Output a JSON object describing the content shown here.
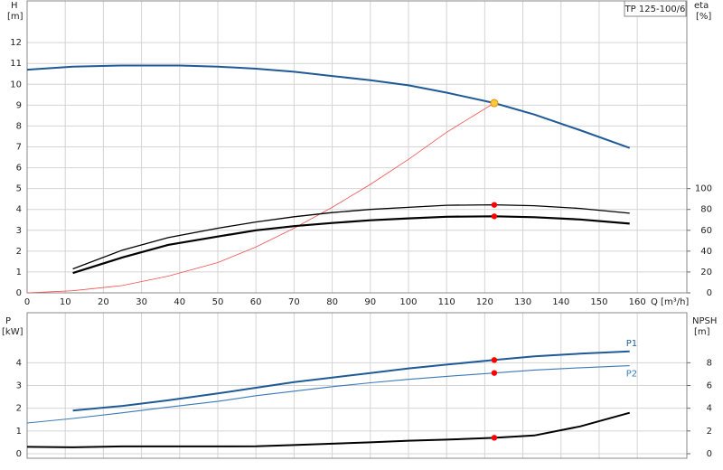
{
  "chart_data": [
    {
      "type": "line",
      "title": "TP 125-100/6",
      "ylabel": "H",
      "yunit": "[m]",
      "y2label": "eta",
      "y2unit": "[%]",
      "xlabel": "Q [m³/h]",
      "xlim": [
        0,
        173
      ],
      "xticks": [
        0,
        10,
        20,
        30,
        40,
        50,
        60,
        70,
        80,
        90,
        100,
        110,
        120,
        130,
        140,
        150,
        160
      ],
      "ylim": [
        0,
        14
      ],
      "yticks": [
        0,
        1,
        2,
        3,
        4,
        5,
        6,
        7,
        8,
        9,
        10,
        11,
        12
      ],
      "y2lim": [
        0,
        280
      ],
      "y2ticks": [
        0,
        20,
        40,
        60,
        80,
        100
      ],
      "grid": true,
      "series": [
        {
          "type": "line",
          "color": "#1f5a96",
          "x": [
            0,
            12,
            25,
            40,
            50,
            60,
            70,
            80,
            90,
            100,
            110,
            122.5,
            133,
            145,
            158
          ],
          "values": [
            10.7,
            10.85,
            10.9,
            10.9,
            10.85,
            10.75,
            10.6,
            10.4,
            10.2,
            9.95,
            9.6,
            9.1,
            8.55,
            7.8,
            6.95
          ]
        },
        {
          "type": "line",
          "color": "#f05050",
          "x": [
            0,
            12,
            25,
            37,
            50,
            60,
            70,
            80,
            90,
            100,
            110,
            122.5
          ],
          "values": [
            0,
            0.1,
            0.35,
            0.8,
            1.45,
            2.2,
            3.1,
            4.1,
            5.2,
            6.4,
            7.7,
            9.1
          ]
        },
        {
          "type": "line",
          "color": "#000000",
          "axis": "y2",
          "x": [
            12,
            25,
            37,
            50,
            60,
            70,
            80,
            90,
            100,
            110,
            122.5,
            133,
            145,
            158
          ],
          "values": [
            23,
            41,
            53,
            62,
            68,
            73,
            77,
            80,
            82,
            84,
            84.4,
            83.6,
            81,
            76.4
          ]
        },
        {
          "type": "line",
          "color": "#000000",
          "axis": "y2",
          "x": [
            12,
            25,
            37,
            50,
            60,
            70,
            80,
            90,
            100,
            110,
            122.5,
            133,
            145,
            158
          ],
          "values": [
            19,
            34,
            46,
            54,
            60,
            64,
            67,
            69.6,
            71.4,
            73,
            73.4,
            72.6,
            70.4,
            66.4
          ]
        },
        {
          "type": "scatter",
          "color": "#ffc640",
          "x": [
            122.5
          ],
          "values": [
            9.1
          ]
        },
        {
          "type": "scatter",
          "color": "#ff0000",
          "axis": "y2",
          "x": [
            122.5,
            122.5
          ],
          "values": [
            84.4,
            73.4
          ]
        }
      ]
    },
    {
      "type": "line",
      "ylabel": "P",
      "yunit": "[kW]",
      "y2label": "NPSH",
      "y2unit": "[m]",
      "xlim": [
        0,
        173
      ],
      "ylim": [
        -0.2,
        6.2
      ],
      "yticks": [
        0,
        1,
        2,
        3,
        4
      ],
      "y2lim": [
        -0.4,
        12.4
      ],
      "y2ticks": [
        0,
        2,
        4,
        6,
        8
      ],
      "grid": true,
      "series": [
        {
          "type": "line",
          "name": "P1",
          "color": "#1f5a96",
          "x": [
            12,
            25,
            37,
            50,
            60,
            70,
            80,
            90,
            100,
            110,
            122.5,
            133,
            145,
            158
          ],
          "values": [
            1.9,
            2.1,
            2.35,
            2.65,
            2.9,
            3.15,
            3.35,
            3.55,
            3.75,
            3.92,
            4.12,
            4.28,
            4.4,
            4.5
          ]
        },
        {
          "type": "line",
          "name": "P2",
          "color": "#3a7ab8",
          "x": [
            0,
            12,
            25,
            37,
            50,
            60,
            70,
            80,
            90,
            100,
            110,
            122.5,
            133,
            145,
            158
          ],
          "values": [
            1.35,
            1.55,
            1.8,
            2.05,
            2.3,
            2.55,
            2.75,
            2.95,
            3.12,
            3.27,
            3.4,
            3.55,
            3.68,
            3.78,
            3.87
          ]
        },
        {
          "type": "line",
          "color": "#000000",
          "axis": "y2",
          "x": [
            0,
            12,
            25,
            50,
            60,
            70,
            80,
            90,
            100,
            110,
            122.5,
            133,
            145,
            158
          ],
          "values": [
            0.6,
            0.56,
            0.64,
            0.64,
            0.66,
            0.76,
            0.88,
            1.0,
            1.14,
            1.24,
            1.4,
            1.6,
            2.4,
            3.6
          ]
        },
        {
          "type": "scatter",
          "color": "#ff0000",
          "x": [
            122.5,
            122.5
          ],
          "values": [
            4.12,
            3.55
          ]
        },
        {
          "type": "scatter",
          "color": "#ff0000",
          "axis": "y2",
          "x": [
            122.5
          ],
          "values": [
            1.4
          ]
        }
      ]
    }
  ]
}
